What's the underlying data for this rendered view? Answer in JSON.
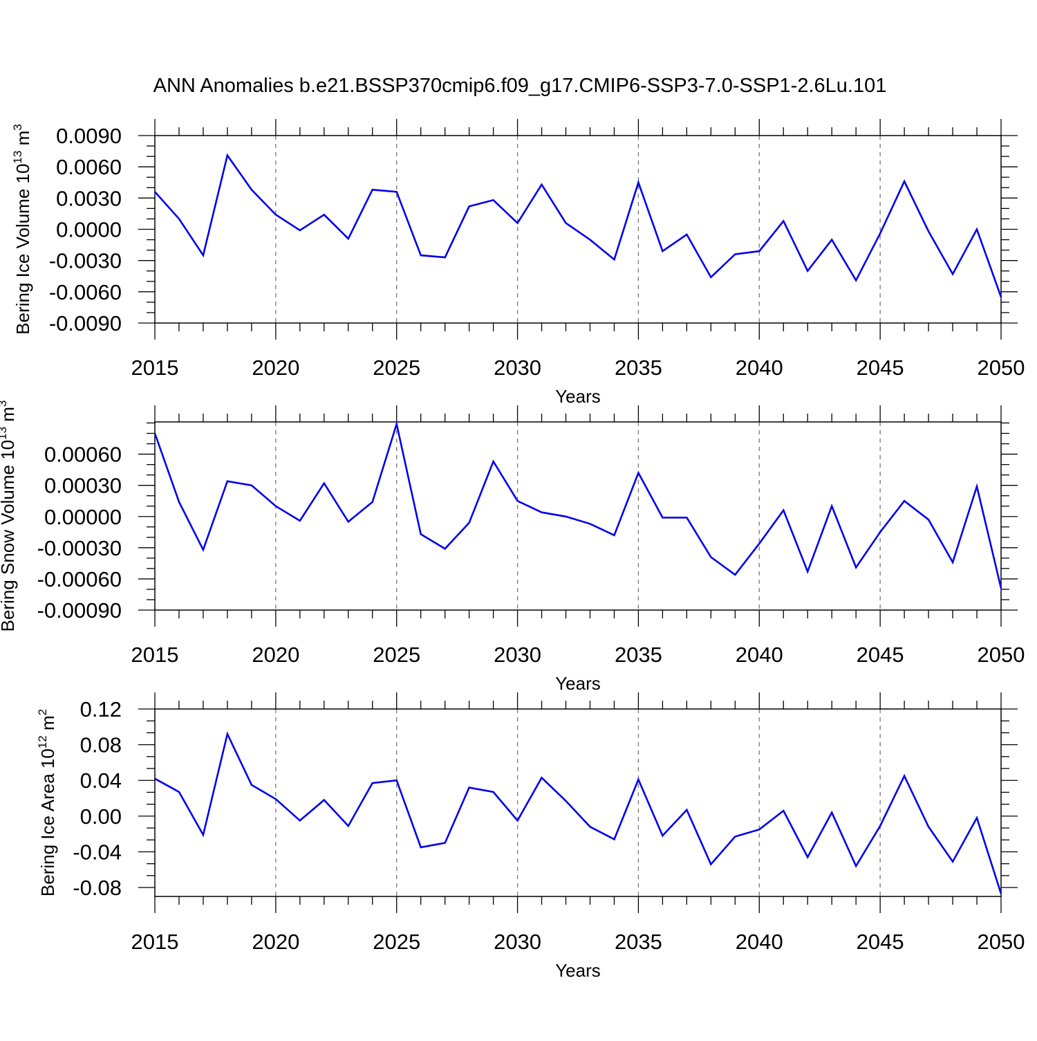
{
  "title": "ANN Anomalies b.e21.BSSP370cmip6.f09_g17.CMIP6-SSP3-7.0-SSP1-2.6Lu.101",
  "colors": {
    "line": "#0000ee",
    "axis": "#000000",
    "grid": "#777777"
  },
  "chart_data": [
    {
      "type": "line",
      "ylabel_main": "Bering Ice Volume 10",
      "ylabel_exp": "13",
      "ylabel_unit": " m",
      "ylabel_unit_exp": "3",
      "xlabel": "Years",
      "xlim": [
        2015,
        2050
      ],
      "ylim": [
        -0.009,
        0.009
      ],
      "x_ticks": [
        2015,
        2020,
        2025,
        2030,
        2035,
        2040,
        2045,
        2050
      ],
      "y_ticks": [
        -0.009,
        -0.006,
        -0.003,
        0.0,
        0.003,
        0.006,
        0.009
      ],
      "y_tick_labels": [
        "-0.0090",
        "-0.0060",
        "-0.0030",
        "0.0000",
        "0.0030",
        "0.0060",
        "0.0090"
      ],
      "grid": "vertical dashed",
      "x": [
        2015,
        2016,
        2017,
        2018,
        2019,
        2020,
        2021,
        2022,
        2023,
        2024,
        2025,
        2026,
        2027,
        2028,
        2029,
        2030,
        2031,
        2032,
        2033,
        2034,
        2035,
        2036,
        2037,
        2038,
        2039,
        2040,
        2041,
        2042,
        2043,
        2044,
        2045,
        2046,
        2047,
        2048,
        2049,
        2050
      ],
      "values": [
        0.0036,
        0.001,
        -0.0025,
        0.0071,
        0.0038,
        0.0014,
        -0.0001,
        0.0014,
        -0.0009,
        0.0038,
        0.0036,
        -0.0025,
        -0.0027,
        0.0022,
        0.0028,
        0.0006,
        0.0043,
        0.0006,
        -0.001,
        -0.0029,
        0.0045,
        -0.0021,
        -0.0005,
        -0.0046,
        -0.0024,
        -0.0021,
        0.0008,
        -0.004,
        -0.001,
        -0.0049,
        -0.0004,
        0.0046,
        -0.0002,
        -0.0043,
        0.0,
        -0.0065
      ]
    },
    {
      "type": "line",
      "ylabel_main": "Bering Snow Volume 10",
      "ylabel_exp": "13",
      "ylabel_unit": " m",
      "ylabel_unit_exp": "3",
      "xlabel": "Years",
      "xlim": [
        2015,
        2050
      ],
      "ylim": [
        -0.0009,
        0.00091
      ],
      "x_ticks": [
        2015,
        2020,
        2025,
        2030,
        2035,
        2040,
        2045,
        2050
      ],
      "y_ticks": [
        -0.0009,
        -0.0006,
        -0.0003,
        0.0,
        0.0003,
        0.0006
      ],
      "y_tick_labels": [
        "-0.00090",
        "-0.00060",
        "-0.00030",
        "0.00000",
        "0.00030",
        "0.00060"
      ],
      "grid": "vertical dashed",
      "x": [
        2015,
        2016,
        2017,
        2018,
        2019,
        2020,
        2021,
        2022,
        2023,
        2024,
        2025,
        2026,
        2027,
        2028,
        2029,
        2030,
        2031,
        2032,
        2033,
        2034,
        2035,
        2036,
        2037,
        2038,
        2039,
        2040,
        2041,
        2042,
        2043,
        2044,
        2045,
        2046,
        2047,
        2048,
        2049,
        2050
      ],
      "values": [
        0.0008,
        0.00014,
        -0.00032,
        0.00034,
        0.0003,
        0.0001,
        -4e-05,
        0.00032,
        -5e-05,
        0.00014,
        0.00089,
        -0.00017,
        -0.00031,
        -6e-05,
        0.00053,
        0.00015,
        4e-05,
        0.0,
        -7e-05,
        -0.00018,
        0.00042,
        -1e-05,
        -1e-05,
        -0.00039,
        -0.00056,
        -0.00026,
        6e-05,
        -0.00053,
        0.0001,
        -0.00049,
        -0.00015,
        0.00015,
        -3e-05,
        -0.00044,
        0.00029,
        -0.00069
      ]
    },
    {
      "type": "line",
      "ylabel_main": "Bering Ice Area 10",
      "ylabel_exp": "12",
      "ylabel_unit": " m",
      "ylabel_unit_exp": "2",
      "xlabel": "Years",
      "xlim": [
        2015,
        2050
      ],
      "ylim": [
        -0.09,
        0.12
      ],
      "x_ticks": [
        2015,
        2020,
        2025,
        2030,
        2035,
        2040,
        2045,
        2050
      ],
      "y_ticks": [
        -0.08,
        -0.04,
        0.0,
        0.04,
        0.08,
        0.12
      ],
      "y_tick_labels": [
        "-0.08",
        "-0.04",
        "0.00",
        "0.04",
        "0.08",
        "0.12"
      ],
      "grid": "vertical dashed",
      "x": [
        2015,
        2016,
        2017,
        2018,
        2019,
        2020,
        2021,
        2022,
        2023,
        2024,
        2025,
        2026,
        2027,
        2028,
        2029,
        2030,
        2031,
        2032,
        2033,
        2034,
        2035,
        2036,
        2037,
        2038,
        2039,
        2040,
        2041,
        2042,
        2043,
        2044,
        2045,
        2046,
        2047,
        2048,
        2049,
        2050
      ],
      "values": [
        0.042,
        0.027,
        -0.021,
        0.092,
        0.035,
        0.019,
        -0.005,
        0.018,
        -0.011,
        0.037,
        0.04,
        -0.035,
        -0.03,
        0.032,
        0.027,
        -0.005,
        0.043,
        0.017,
        -0.012,
        -0.026,
        0.041,
        -0.022,
        0.007,
        -0.054,
        -0.023,
        -0.015,
        0.006,
        -0.046,
        0.004,
        -0.056,
        -0.011,
        0.045,
        -0.012,
        -0.051,
        -0.002,
        -0.087
      ]
    }
  ]
}
